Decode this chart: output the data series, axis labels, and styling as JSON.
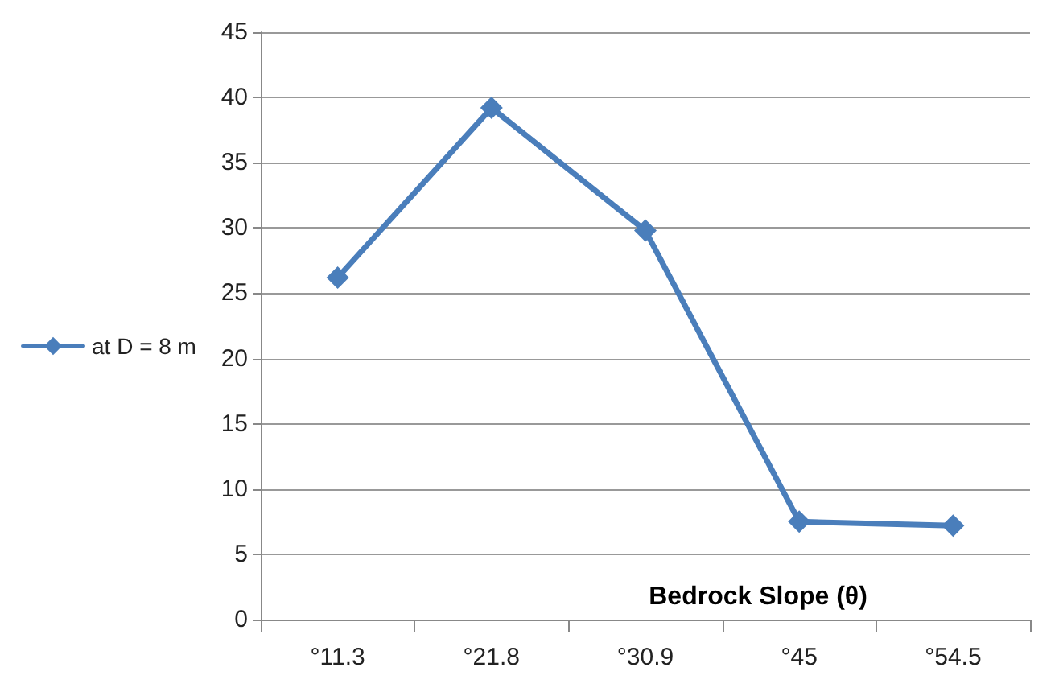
{
  "chart_data": {
    "type": "line",
    "xlabel": "Bedrock Slope (θ)",
    "categories": [
      "°11.3",
      "°21.8",
      "°30.9",
      "°45",
      "°54.5"
    ],
    "series": [
      {
        "name": "at D = 8 m",
        "color": "#4a7ebb",
        "values": [
          26.2,
          39.2,
          29.8,
          7.5,
          7.2
        ]
      }
    ],
    "ylim": [
      0,
      45
    ],
    "yticks": [
      0,
      5,
      10,
      15,
      20,
      25,
      30,
      35,
      40,
      45
    ],
    "grid": "y",
    "legend": "left",
    "marker": "diamond",
    "line_style": "solid"
  }
}
